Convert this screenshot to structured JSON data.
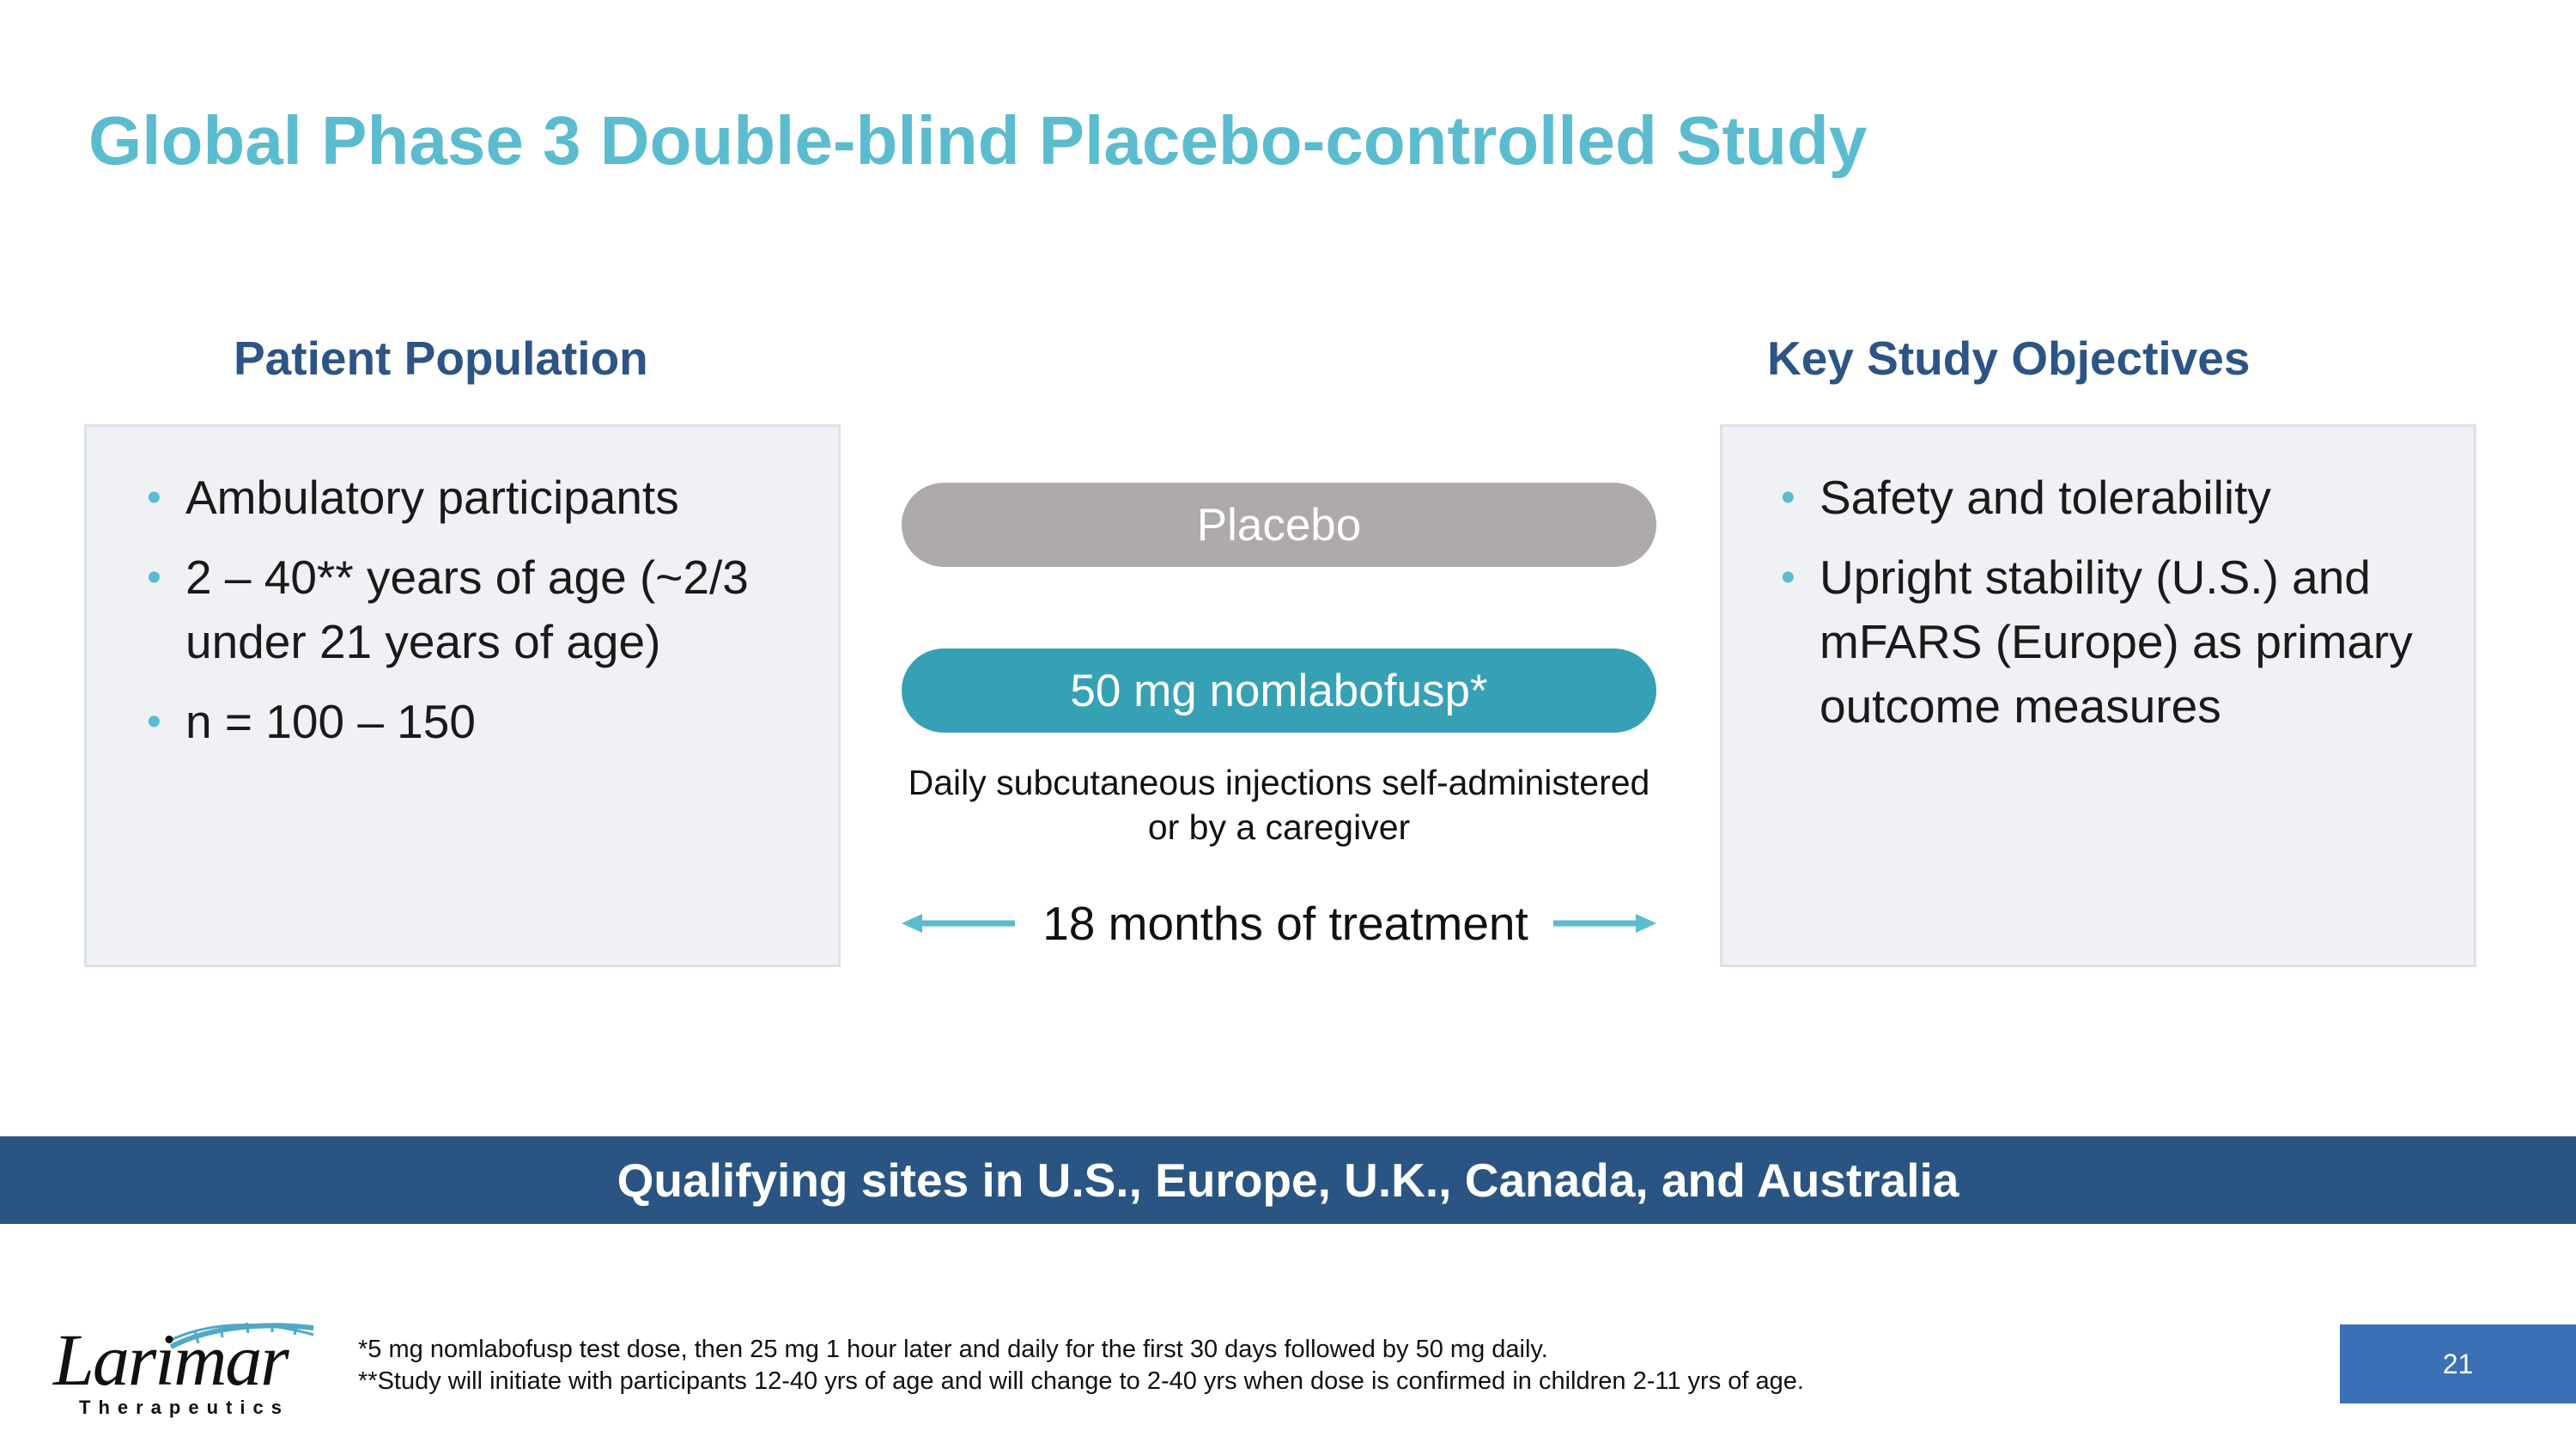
{
  "slide": {
    "title": "Global Phase 3 Double-blind Placebo-controlled Study"
  },
  "patient_population": {
    "heading": "Patient Population",
    "bullets": [
      "Ambulatory participants",
      "2 – 40** years of age (~2/3 under 21 years of age)",
      "n = 100 – 150"
    ]
  },
  "key_objectives": {
    "heading": "Key Study Objectives",
    "bullets": [
      "Safety and tolerability",
      "Upright stability (U.S.) and mFARS (Europe) as primary outcome measures"
    ]
  },
  "arms": {
    "placebo_label": "Placebo",
    "drug_label": "50 mg nomlabofusp*",
    "caption": "Daily subcutaneous injections self-administered or by a caregiver",
    "duration_label": "18 months of treatment"
  },
  "banner": {
    "text": "Qualifying sites in U.S., Europe, U.K., Canada, and Australia"
  },
  "footer": {
    "logo_name": "Larimar",
    "logo_subtitle": "Therapeutics",
    "footnote_1": "*5 mg nomlabofusp test dose, then 25 mg 1 hour later and daily for the first 30 days followed by 50 mg daily.",
    "footnote_2": "**Study will initiate with participants 12-40 yrs of age and will change to 2-40 yrs when dose is confirmed in children 2-11 yrs of age.",
    "page_number": "21"
  },
  "colors": {
    "title": "#5bbccf",
    "heading": "#2c5485",
    "placebo_pill": "#adaaa9",
    "drug_pill": "#36a1b5",
    "arrow": "#5bbccf",
    "banner": "#2a5583",
    "page_badge": "#3b6fb6",
    "panel_bg": "#eff1f4"
  },
  "icons": [
    "left-arrow-icon",
    "right-arrow-icon",
    "bullet-icon"
  ]
}
